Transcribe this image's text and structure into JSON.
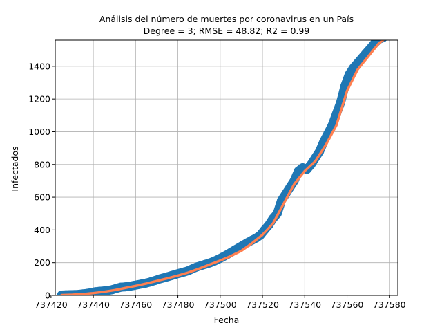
{
  "chart_data": {
    "type": "scatter",
    "title": "Análisis del número de muertes por coronavirus en un País",
    "subtitle": "Degree = 3; RMSE = 48.82; R2 = 0.99",
    "xlabel": "Fecha",
    "ylabel": "Infectados",
    "xlim": [
      737422,
      737584
    ],
    "ylim": [
      0,
      1560
    ],
    "xticks": [
      737420,
      737440,
      737460,
      737480,
      737500,
      737520,
      737540,
      737560,
      737580
    ],
    "yticks": [
      0,
      200,
      400,
      600,
      800,
      1000,
      1200,
      1400
    ],
    "grid": true,
    "colors": {
      "points": "#1f77b4",
      "fit": "#ff7f50"
    },
    "series": [
      {
        "kind": "points",
        "x": [
          737425,
          737427,
          737429,
          737431,
          737433,
          737435,
          737437,
          737439,
          737441,
          737443,
          737445,
          737447,
          737449,
          737451,
          737453,
          737455,
          737457,
          737459,
          737461,
          737463,
          737465,
          737467,
          737469,
          737471,
          737473,
          737475,
          737477,
          737479,
          737481,
          737483,
          737485,
          737487,
          737489,
          737491,
          737493,
          737495,
          737497,
          737499,
          737501,
          737503,
          737505,
          737507,
          737509,
          737511,
          737513,
          737515,
          737517,
          737519,
          737521,
          737523,
          737525,
          737527,
          737529,
          737531,
          737533,
          737535,
          737537,
          737539,
          737541,
          737543,
          737545,
          737547,
          737549,
          737551,
          737553,
          737555,
          737557,
          737559,
          737561,
          737563,
          737565,
          737567,
          737569,
          737571,
          737573,
          737575,
          737577
        ],
        "y": [
          2,
          3,
          4,
          5,
          6,
          9,
          12,
          17,
          22,
          25,
          27,
          30,
          35,
          43,
          50,
          52,
          55,
          60,
          65,
          70,
          75,
          82,
          90,
          99,
          106,
          113,
          121,
          129,
          136,
          143,
          151,
          163,
          174,
          182,
          190,
          198,
          208,
          220,
          233,
          247,
          262,
          278,
          293,
          308,
          323,
          337,
          350,
          368,
          400,
          430,
          470,
          500,
          580,
          620,
          660,
          700,
          760,
          780,
          770,
          800,
          840,
          880,
          940,
          990,
          1040,
          1110,
          1180,
          1280,
          1350,
          1390,
          1420,
          1450,
          1480,
          1510,
          1540,
          1565,
          1575
        ]
      },
      {
        "kind": "fit",
        "degree": 3,
        "x": [
          737425,
          737430,
          737435,
          737440,
          737445,
          737450,
          737455,
          737460,
          737465,
          737470,
          737475,
          737480,
          737485,
          737490,
          737495,
          737500,
          737505,
          737510,
          737515,
          737520,
          737525,
          737530,
          737535,
          737540,
          737545,
          737550,
          737555,
          737560,
          737565,
          737570,
          737575,
          737578
        ],
        "y": [
          2,
          4,
          8,
          14,
          22,
          32,
          45,
          58,
          72,
          88,
          104,
          121,
          140,
          163,
          188,
          213,
          240,
          272,
          318,
          370,
          440,
          560,
          680,
          760,
          820,
          920,
          1040,
          1250,
          1380,
          1460,
          1540,
          1570
        ]
      }
    ]
  }
}
